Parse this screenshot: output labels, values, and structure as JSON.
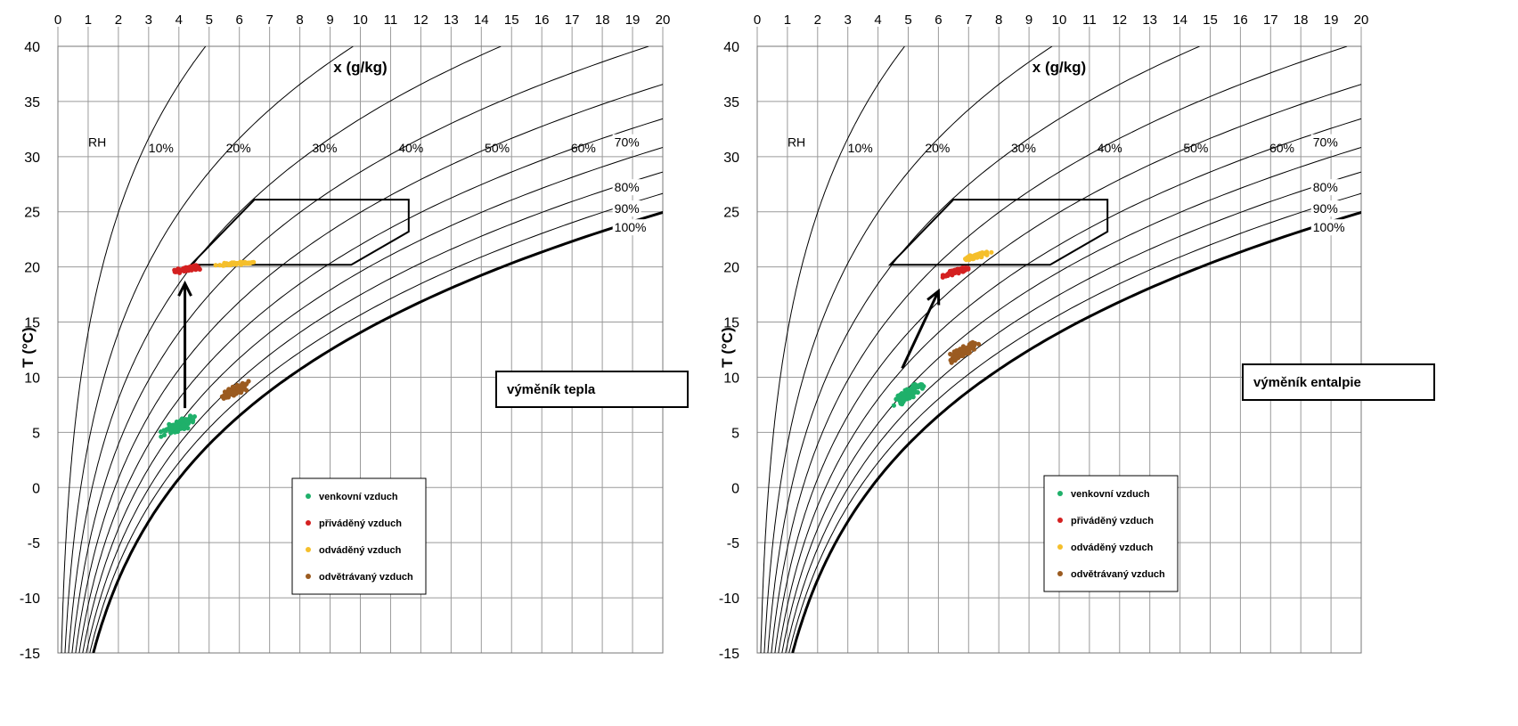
{
  "chart_data": [
    {
      "type": "scatter",
      "title": "",
      "xlabel": "x (g/kg)",
      "ylabel": "T (°C)",
      "xlim": [
        0,
        20
      ],
      "ylim": [
        -15,
        40
      ],
      "x_ticks": [
        "0",
        "1",
        "2",
        "3",
        "4",
        "5",
        "6",
        "7",
        "8",
        "9",
        "10",
        "11",
        "12",
        "13",
        "14",
        "15",
        "16",
        "17",
        "18",
        "19",
        "20"
      ],
      "y_ticks": [
        "40",
        "35",
        "30",
        "25",
        "20",
        "15",
        "10",
        "5",
        "0",
        "-5",
        "-10",
        "-15"
      ],
      "rh_prefix": "RH",
      "rh_curves": [
        {
          "label": "10%",
          "rh": 0.1
        },
        {
          "label": "20%",
          "rh": 0.2
        },
        {
          "label": "30%",
          "rh": 0.3
        },
        {
          "label": "40%",
          "rh": 0.4
        },
        {
          "label": "50%",
          "rh": 0.5
        },
        {
          "label": "60%",
          "rh": 0.6
        },
        {
          "label": "70%",
          "rh": 0.7
        },
        {
          "label": "80%",
          "rh": 0.8
        },
        {
          "label": "90%",
          "rh": 0.9
        },
        {
          "label": "100%",
          "rh": 1.0
        }
      ],
      "comfort_zone": [
        [
          4.4,
          20.2
        ],
        [
          6.5,
          26.1
        ],
        [
          11.6,
          26.1
        ],
        [
          11.6,
          23.2
        ],
        [
          9.7,
          20.2
        ]
      ],
      "arrow": {
        "from": [
          4.2,
          7.2
        ],
        "to": [
          4.2,
          18.5
        ]
      },
      "annotation": "výměník tepla",
      "legend_position": "bottom-center",
      "series": [
        {
          "name": "venkovní vzduch",
          "color": "#1fb06a",
          "center": [
            4.0,
            5.6
          ],
          "extent": [
            1.0,
            2.3
          ],
          "count": 110
        },
        {
          "name": "přiváděný vzduch",
          "color": "#d42020",
          "center": [
            4.3,
            19.8
          ],
          "extent": [
            1.1,
            0.9
          ],
          "count": 60
        },
        {
          "name": "odváděný vzduch",
          "color": "#f5bf2b",
          "center": [
            5.9,
            20.3
          ],
          "extent": [
            1.2,
            0.5
          ],
          "count": 70
        },
        {
          "name": "odvětrávaný vzduch",
          "color": "#9b5b20",
          "center": [
            5.8,
            8.7
          ],
          "extent": [
            0.9,
            2.0
          ],
          "count": 110
        }
      ]
    },
    {
      "type": "scatter",
      "title": "",
      "xlabel": "x (g/kg)",
      "ylabel": "T (°C)",
      "xlim": [
        0,
        20
      ],
      "ylim": [
        -15,
        40
      ],
      "x_ticks": [
        "0",
        "1",
        "2",
        "3",
        "4",
        "5",
        "6",
        "7",
        "8",
        "9",
        "10",
        "11",
        "12",
        "13",
        "14",
        "15",
        "16",
        "17",
        "18",
        "19",
        "20"
      ],
      "y_ticks": [
        "40",
        "35",
        "30",
        "25",
        "20",
        "15",
        "10",
        "5",
        "0",
        "-5",
        "-10",
        "-15"
      ],
      "rh_prefix": "RH",
      "rh_curves": [
        {
          "label": "10%",
          "rh": 0.1
        },
        {
          "label": "20%",
          "rh": 0.2
        },
        {
          "label": "30%",
          "rh": 0.3
        },
        {
          "label": "40%",
          "rh": 0.4
        },
        {
          "label": "50%",
          "rh": 0.5
        },
        {
          "label": "60%",
          "rh": 0.6
        },
        {
          "label": "70%",
          "rh": 0.7
        },
        {
          "label": "80%",
          "rh": 0.8
        },
        {
          "label": "90%",
          "rh": 0.9
        },
        {
          "label": "100%",
          "rh": 1.0
        }
      ],
      "comfort_zone": [
        [
          4.4,
          20.2
        ],
        [
          6.5,
          26.1
        ],
        [
          11.6,
          26.1
        ],
        [
          11.6,
          23.2
        ],
        [
          9.7,
          20.2
        ]
      ],
      "arrow": {
        "from": [
          4.8,
          10.8
        ],
        "to": [
          6.0,
          17.8
        ]
      },
      "annotation": "výměník entalpie",
      "legend_position": "bottom-center",
      "series": [
        {
          "name": "venkovní vzduch",
          "color": "#1fb06a",
          "center": [
            5.0,
            8.5
          ],
          "extent": [
            0.9,
            2.6
          ],
          "count": 110
        },
        {
          "name": "přiváděný vzduch",
          "color": "#d42020",
          "center": [
            6.6,
            19.6
          ],
          "extent": [
            0.8,
            1.2
          ],
          "count": 60
        },
        {
          "name": "odváděný vzduch",
          "color": "#f5bf2b",
          "center": [
            7.3,
            21.0
          ],
          "extent": [
            0.9,
            1.2
          ],
          "count": 70
        },
        {
          "name": "odvětrávaný vzduch",
          "color": "#9b5b20",
          "center": [
            6.8,
            12.3
          ],
          "extent": [
            0.9,
            2.3
          ],
          "count": 110
        }
      ]
    }
  ]
}
